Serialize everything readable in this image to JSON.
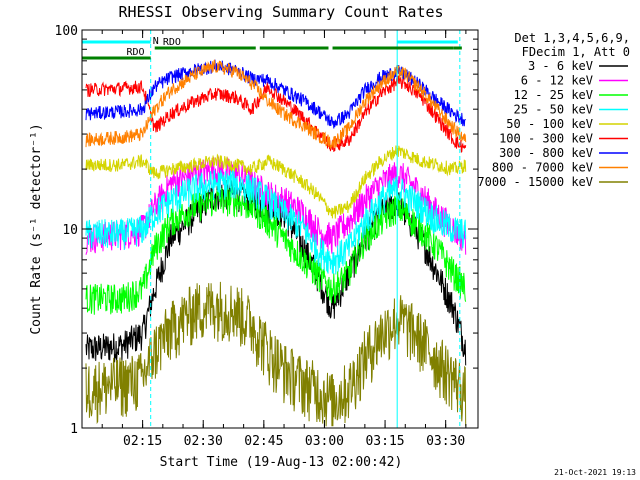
{
  "chart_data": {
    "type": "line",
    "title": "RHESSI Observing Summary Count Rates",
    "xlabel": "Start Time (19-Aug-13 02:00:42)",
    "ylabel": "Count Rate (s⁻¹ detector⁻¹)",
    "y_scale": "log",
    "ylim": [
      1,
      100
    ],
    "xlim_minutes": [
      0,
      98
    ],
    "x_ticks": [
      {
        "label": "02:15",
        "minute": 15
      },
      {
        "label": "02:30",
        "minute": 30
      },
      {
        "label": "02:45",
        "minute": 45
      },
      {
        "label": "03:00",
        "minute": 60
      },
      {
        "label": "03:15",
        "minute": 75
      },
      {
        "label": "03:30",
        "minute": 90
      }
    ],
    "y_ticks": [
      {
        "label": "1",
        "value": 1
      },
      {
        "label": "10",
        "value": 10
      },
      {
        "label": "100",
        "value": 100
      }
    ],
    "legend": {
      "placement": "right",
      "header_line1": "Det 1,3,4,5,6,9,",
      "header_line2": "FDecim 1, Att 0"
    },
    "series": [
      {
        "name": "3 - 6 keV",
        "color": "#000000",
        "points": [
          [
            1,
            2.5
          ],
          [
            10,
            2.6
          ],
          [
            15,
            3.0
          ],
          [
            18,
            5
          ],
          [
            22,
            9
          ],
          [
            28,
            12
          ],
          [
            33,
            15
          ],
          [
            38,
            15
          ],
          [
            42,
            14
          ],
          [
            46,
            13
          ],
          [
            50,
            12
          ],
          [
            55,
            8
          ],
          [
            58,
            6
          ],
          [
            62,
            4
          ],
          [
            66,
            6
          ],
          [
            70,
            9
          ],
          [
            74,
            12
          ],
          [
            78,
            14
          ],
          [
            80,
            12
          ],
          [
            84,
            9
          ],
          [
            88,
            6
          ],
          [
            92,
            4
          ],
          [
            95,
            2.5
          ]
        ]
      },
      {
        "name": "6 - 12 keV",
        "color": "#ff00ff",
        "points": [
          [
            1,
            9
          ],
          [
            10,
            9.5
          ],
          [
            15,
            10
          ],
          [
            18,
            13
          ],
          [
            22,
            17
          ],
          [
            28,
            19
          ],
          [
            33,
            20
          ],
          [
            38,
            19
          ],
          [
            42,
            17
          ],
          [
            46,
            15
          ],
          [
            50,
            14
          ],
          [
            55,
            12
          ],
          [
            58,
            10
          ],
          [
            62,
            9
          ],
          [
            66,
            11
          ],
          [
            70,
            14
          ],
          [
            74,
            17
          ],
          [
            78,
            19
          ],
          [
            80,
            18
          ],
          [
            84,
            15
          ],
          [
            88,
            12
          ],
          [
            92,
            10
          ],
          [
            95,
            9
          ]
        ]
      },
      {
        "name": "12 - 25 keV",
        "color": "#00ff00",
        "points": [
          [
            1,
            4.5
          ],
          [
            10,
            4.5
          ],
          [
            15,
            5
          ],
          [
            18,
            8
          ],
          [
            22,
            11
          ],
          [
            28,
            13
          ],
          [
            33,
            14
          ],
          [
            38,
            14
          ],
          [
            42,
            13
          ],
          [
            46,
            11
          ],
          [
            50,
            9
          ],
          [
            55,
            7
          ],
          [
            58,
            6
          ],
          [
            62,
            5
          ],
          [
            66,
            6
          ],
          [
            70,
            9
          ],
          [
            74,
            11
          ],
          [
            78,
            13
          ],
          [
            80,
            12
          ],
          [
            84,
            10
          ],
          [
            88,
            8
          ],
          [
            92,
            6
          ],
          [
            95,
            5
          ]
        ]
      },
      {
        "name": "25 - 50 keV",
        "color": "#00ffff",
        "points": [
          [
            1,
            9.5
          ],
          [
            10,
            9.5
          ],
          [
            15,
            10
          ],
          [
            18,
            12
          ],
          [
            22,
            14
          ],
          [
            28,
            16
          ],
          [
            33,
            17
          ],
          [
            38,
            17
          ],
          [
            42,
            16
          ],
          [
            46,
            14
          ],
          [
            50,
            12
          ],
          [
            55,
            10
          ],
          [
            58,
            8
          ],
          [
            62,
            7
          ],
          [
            66,
            8
          ],
          [
            70,
            11
          ],
          [
            74,
            14
          ],
          [
            78,
            16
          ],
          [
            80,
            15
          ],
          [
            84,
            13
          ],
          [
            88,
            11
          ],
          [
            92,
            10
          ],
          [
            95,
            9.5
          ]
        ]
      },
      {
        "name": "50 - 100 keV",
        "color": "#d4d400",
        "points": [
          [
            1,
            21
          ],
          [
            10,
            21
          ],
          [
            15,
            22
          ],
          [
            18,
            19
          ],
          [
            22,
            20
          ],
          [
            28,
            21
          ],
          [
            33,
            22
          ],
          [
            38,
            21
          ],
          [
            42,
            20
          ],
          [
            46,
            22
          ],
          [
            50,
            20
          ],
          [
            55,
            17
          ],
          [
            58,
            15
          ],
          [
            62,
            12
          ],
          [
            66,
            13
          ],
          [
            70,
            18
          ],
          [
            74,
            22
          ],
          [
            78,
            25
          ],
          [
            80,
            24
          ],
          [
            84,
            22
          ],
          [
            88,
            21
          ],
          [
            92,
            20
          ],
          [
            95,
            21
          ]
        ]
      },
      {
        "name": "100 - 300 keV",
        "color": "#ff0000",
        "points": [
          [
            1,
            50
          ],
          [
            10,
            51
          ],
          [
            15,
            52
          ],
          [
            18,
            32
          ],
          [
            22,
            38
          ],
          [
            28,
            44
          ],
          [
            33,
            48
          ],
          [
            38,
            46
          ],
          [
            42,
            40
          ],
          [
            46,
            52
          ],
          [
            50,
            44
          ],
          [
            55,
            36
          ],
          [
            58,
            31
          ],
          [
            62,
            26
          ],
          [
            66,
            28
          ],
          [
            70,
            38
          ],
          [
            74,
            48
          ],
          [
            78,
            55
          ],
          [
            80,
            54
          ],
          [
            84,
            46
          ],
          [
            88,
            36
          ],
          [
            92,
            28
          ],
          [
            95,
            25
          ]
        ]
      },
      {
        "name": "300 - 800 keV",
        "color": "#0000ff",
        "points": [
          [
            1,
            38
          ],
          [
            10,
            39
          ],
          [
            15,
            40
          ],
          [
            18,
            52
          ],
          [
            22,
            58
          ],
          [
            28,
            63
          ],
          [
            33,
            66
          ],
          [
            38,
            63
          ],
          [
            42,
            57
          ],
          [
            46,
            56
          ],
          [
            50,
            50
          ],
          [
            55,
            44
          ],
          [
            58,
            40
          ],
          [
            62,
            34
          ],
          [
            66,
            38
          ],
          [
            70,
            50
          ],
          [
            74,
            58
          ],
          [
            78,
            62
          ],
          [
            80,
            60
          ],
          [
            84,
            52
          ],
          [
            88,
            44
          ],
          [
            92,
            38
          ],
          [
            95,
            35
          ]
        ]
      },
      {
        "name": "800 - 7000 keV",
        "color": "#ff8000",
        "points": [
          [
            1,
            28
          ],
          [
            10,
            29
          ],
          [
            15,
            30
          ],
          [
            18,
            40
          ],
          [
            22,
            50
          ],
          [
            28,
            60
          ],
          [
            33,
            66
          ],
          [
            38,
            62
          ],
          [
            42,
            54
          ],
          [
            46,
            44
          ],
          [
            50,
            38
          ],
          [
            55,
            33
          ],
          [
            58,
            30
          ],
          [
            62,
            27
          ],
          [
            66,
            32
          ],
          [
            70,
            44
          ],
          [
            74,
            54
          ],
          [
            78,
            62
          ],
          [
            80,
            60
          ],
          [
            84,
            50
          ],
          [
            88,
            40
          ],
          [
            92,
            32
          ],
          [
            95,
            28
          ]
        ]
      },
      {
        "name": "7000 - 15000 keV",
        "color": "#808000",
        "points": [
          [
            1,
            1.6
          ],
          [
            10,
            1.7
          ],
          [
            15,
            1.8
          ],
          [
            18,
            2.5
          ],
          [
            22,
            3.2
          ],
          [
            28,
            4
          ],
          [
            33,
            4.2
          ],
          [
            38,
            4
          ],
          [
            42,
            3.4
          ],
          [
            46,
            2.5
          ],
          [
            50,
            2
          ],
          [
            55,
            1.7
          ],
          [
            58,
            1.6
          ],
          [
            62,
            1.4
          ],
          [
            66,
            1.6
          ],
          [
            70,
            2.3
          ],
          [
            74,
            3
          ],
          [
            78,
            3.6
          ],
          [
            80,
            3.4
          ],
          [
            84,
            2.8
          ],
          [
            88,
            2.2
          ],
          [
            92,
            1.8
          ],
          [
            95,
            1.5
          ]
        ]
      }
    ],
    "state_bars": [
      {
        "label": "N",
        "color": "#00ffff",
        "segments": [
          [
            0,
            17
          ],
          [
            78,
            93
          ]
        ]
      },
      {
        "label": "RDO",
        "color": "#008000",
        "segments": [
          [
            0,
            17
          ]
        ]
      },
      {
        "label": "RDO",
        "color": "#008000",
        "segments": [
          [
            18,
            43
          ],
          [
            44,
            61
          ],
          [
            62,
            92
          ],
          [
            92,
            94
          ]
        ]
      }
    ],
    "vertical_markers": [
      {
        "minute": 17,
        "color": "#00ffff"
      },
      {
        "minute": 78,
        "color": "#00ffff"
      },
      {
        "minute": 93.5,
        "color": "#00ffff"
      }
    ],
    "timestamp": "21-Oct-2021 19:13"
  }
}
